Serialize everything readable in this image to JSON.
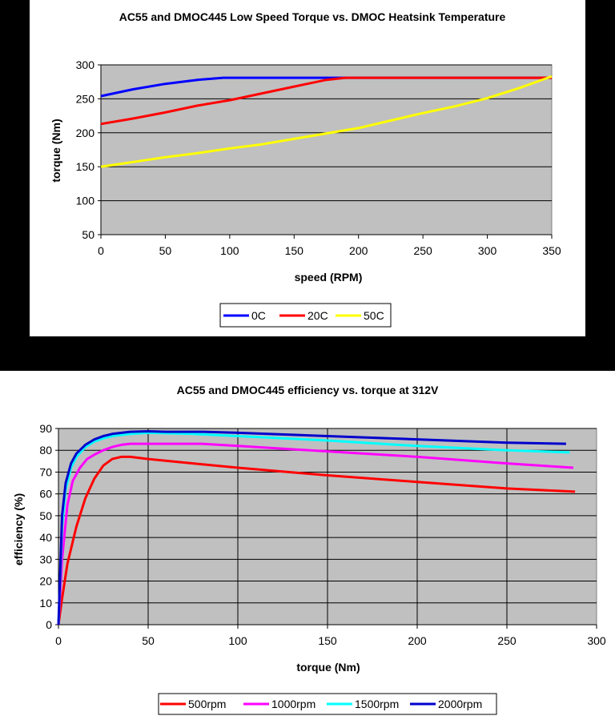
{
  "charts": [
    {
      "type": "line",
      "title": "AC55 and DMOC445 Low Speed Torque vs. DMOC Heatsink Temperature",
      "xlabel": "speed (RPM)",
      "ylabel": "torque (Nm)",
      "xlim": [
        0,
        350
      ],
      "ylim": [
        50,
        300
      ],
      "xticks": [
        "0",
        "50",
        "100",
        "150",
        "200",
        "250",
        "300",
        "350"
      ],
      "yticks": [
        "300",
        "250",
        "200",
        "150",
        "100",
        "50"
      ],
      "grid": "horizontal",
      "legend": "bottom",
      "series": [
        {
          "name": "0C",
          "color": "#0000ff",
          "x": [
            0,
            25,
            50,
            75,
            95,
            125,
            150,
            175,
            200,
            225,
            250,
            275,
            300,
            325,
            350
          ],
          "y": [
            254,
            264,
            272,
            278,
            281,
            281,
            281,
            281,
            281,
            281,
            281,
            281,
            281,
            281,
            281
          ]
        },
        {
          "name": "20C",
          "color": "#ff0000",
          "x": [
            0,
            25,
            50,
            75,
            100,
            125,
            150,
            175,
            190,
            225,
            250,
            275,
            300,
            325,
            350
          ],
          "y": [
            213,
            221,
            230,
            240,
            248,
            258,
            268,
            278,
            281,
            281,
            281,
            281,
            281,
            281,
            281
          ]
        },
        {
          "name": "50C",
          "color": "#ffff00",
          "x": [
            0,
            25,
            50,
            75,
            100,
            125,
            150,
            175,
            200,
            225,
            250,
            275,
            300,
            325,
            350
          ],
          "y": [
            150,
            157,
            164,
            170,
            177,
            183,
            191,
            199,
            207,
            218,
            229,
            239,
            251,
            266,
            283
          ]
        }
      ]
    },
    {
      "type": "line",
      "title": "AC55 and DMOC445 efficiency vs. torque at 312V",
      "xlabel": "torque (Nm)",
      "ylabel": "efficiency (%)",
      "xlim": [
        0,
        300
      ],
      "ylim": [
        0,
        90
      ],
      "xticks": [
        "0",
        "50",
        "100",
        "150",
        "200",
        "250",
        "300"
      ],
      "yticks": [
        "90",
        "80",
        "70",
        "60",
        "50",
        "40",
        "30",
        "20",
        "10",
        "0"
      ],
      "grid": "both",
      "legend": "bottom",
      "series": [
        {
          "name": "500rpm",
          "color": "#ff0000",
          "x": [
            0,
            2,
            5,
            10,
            15,
            20,
            25,
            30,
            35,
            40,
            45,
            50,
            75,
            100,
            150,
            200,
            250,
            288
          ],
          "y": [
            0,
            12,
            28,
            45,
            58,
            67,
            73,
            76,
            77,
            77,
            76.5,
            76,
            74,
            72,
            68.5,
            65.5,
            62.5,
            61
          ]
        },
        {
          "name": "1000rpm",
          "color": "#ff00ff",
          "x": [
            0,
            2,
            5,
            8,
            12,
            16,
            20,
            25,
            30,
            35,
            40,
            60,
            80,
            100,
            150,
            200,
            250,
            287
          ],
          "y": [
            0,
            30,
            55,
            66,
            72,
            76,
            78,
            80,
            81.5,
            82.5,
            83,
            83,
            83,
            82,
            79.5,
            77,
            74,
            72
          ]
        },
        {
          "name": "1500rpm",
          "color": "#00ffff",
          "x": [
            0,
            2,
            4,
            7,
            10,
            15,
            20,
            25,
            30,
            40,
            50,
            75,
            100,
            150,
            200,
            250,
            285
          ],
          "y": [
            0,
            45,
            62,
            72,
            77,
            81.5,
            84,
            85.5,
            86.5,
            87.5,
            88,
            87.5,
            86.5,
            84.5,
            82,
            80,
            79
          ]
        },
        {
          "name": "2000rpm",
          "color": "#0000cc",
          "x": [
            0,
            2,
            4,
            7,
            10,
            15,
            20,
            25,
            30,
            40,
            50,
            60,
            80,
            100,
            150,
            200,
            250,
            283
          ],
          "y": [
            0,
            50,
            65,
            74,
            78.5,
            82.5,
            85,
            86.5,
            87.5,
            88.5,
            88.7,
            88.5,
            88.5,
            88,
            86.5,
            85,
            83.5,
            83
          ]
        }
      ]
    }
  ]
}
